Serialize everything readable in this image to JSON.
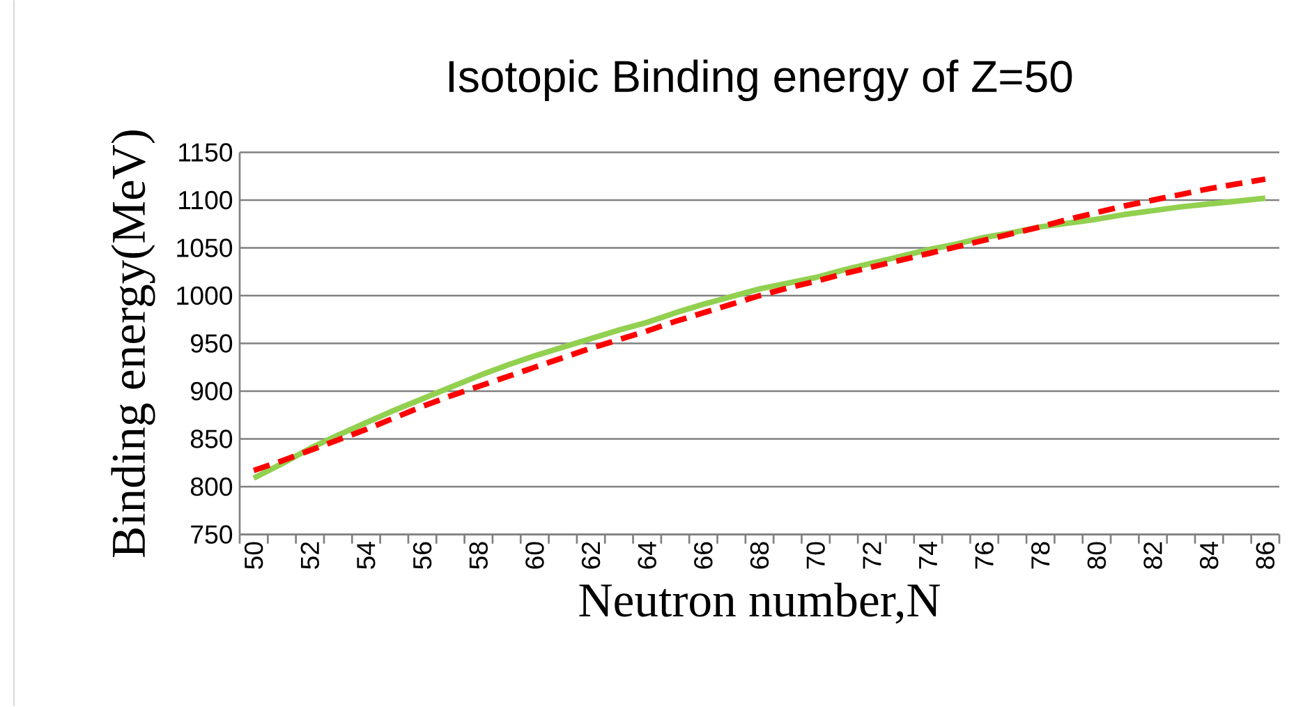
{
  "chart_data": {
    "type": "line",
    "title": "Isotopic Binding energy of Z=50",
    "xlabel": "Neutron number,N",
    "ylabel": "Binding energy(MeV)",
    "categories": [
      "50",
      null,
      "52",
      null,
      "54",
      null,
      "56",
      null,
      "58",
      null,
      "60",
      null,
      "62",
      null,
      "64",
      null,
      "66",
      null,
      "68",
      null,
      "70",
      null,
      "72",
      null,
      "74",
      null,
      "76",
      null,
      "78",
      null,
      "80",
      null,
      "82",
      null,
      "84",
      null,
      "86"
    ],
    "series": [
      {
        "color": "#92d050",
        "line_style": "solid",
        "values": [
          809,
          824,
          840,
          854,
          867,
          880,
          892,
          904,
          916,
          927,
          937,
          946,
          955,
          964,
          972,
          982,
          991,
          999,
          1007,
          1013,
          1019,
          1027,
          1034,
          1041,
          1048,
          1054,
          1061,
          1066,
          1072,
          1076,
          1080,
          1085,
          1089,
          1093,
          1096,
          1099,
          1102
        ]
      },
      {
        "color": "#ff0000",
        "line_style": "dashed",
        "values": [
          817,
          827,
          838,
          849,
          860,
          872,
          884,
          895,
          905,
          915,
          925,
          935,
          945,
          954,
          963,
          973,
          982,
          991,
          1000,
          1008,
          1015,
          1023,
          1030,
          1037,
          1044,
          1051,
          1058,
          1065,
          1072,
          1080,
          1087,
          1094,
          1100,
          1106,
          1112,
          1117,
          1122
        ]
      }
    ],
    "ylim": [
      750,
      1150
    ],
    "yticks": [
      750,
      800,
      850,
      900,
      950,
      1000,
      1050,
      1100,
      1150
    ],
    "grid": "y"
  }
}
